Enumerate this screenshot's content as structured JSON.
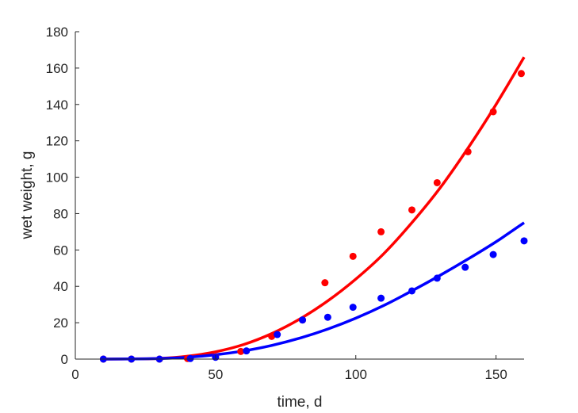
{
  "chart_data": {
    "type": "scatter",
    "xlabel": "time, d",
    "ylabel": "wet weight, g",
    "xlim": [
      0,
      160
    ],
    "ylim": [
      0,
      180
    ],
    "xticks": [
      0,
      50,
      100,
      150
    ],
    "yticks": [
      0,
      20,
      40,
      60,
      80,
      100,
      120,
      140,
      160,
      180
    ],
    "grid": false,
    "series": [
      {
        "color": "#ff0000",
        "points": [
          [
            10,
            0
          ],
          [
            20,
            0
          ],
          [
            30,
            0
          ],
          [
            40,
            0.3
          ],
          [
            50,
            1.2
          ],
          [
            59,
            4.2
          ],
          [
            70,
            12.5
          ],
          [
            81,
            21.5
          ],
          [
            89,
            42
          ],
          [
            99,
            56.5
          ],
          [
            109,
            70
          ],
          [
            120,
            82
          ],
          [
            129,
            97
          ],
          [
            140,
            114
          ],
          [
            149,
            136
          ],
          [
            159,
            157
          ]
        ],
        "fit": [
          [
            10,
            0
          ],
          [
            20,
            0.1
          ],
          [
            30,
            0.4
          ],
          [
            40,
            1.6
          ],
          [
            50,
            4
          ],
          [
            60,
            8
          ],
          [
            70,
            14
          ],
          [
            80,
            22
          ],
          [
            90,
            32
          ],
          [
            100,
            44
          ],
          [
            110,
            58
          ],
          [
            120,
            75
          ],
          [
            130,
            94
          ],
          [
            140,
            116
          ],
          [
            150,
            140
          ],
          [
            160,
            166
          ]
        ]
      },
      {
        "color": "#0000ff",
        "points": [
          [
            10,
            0
          ],
          [
            20,
            0
          ],
          [
            30,
            0
          ],
          [
            41,
            0.3
          ],
          [
            50,
            1
          ],
          [
            61,
            4.5
          ],
          [
            72,
            13.5
          ],
          [
            81,
            21.5
          ],
          [
            90,
            23
          ],
          [
            99,
            28.5
          ],
          [
            109,
            33.5
          ],
          [
            120,
            37.5
          ],
          [
            129,
            44.5
          ],
          [
            139,
            50.5
          ],
          [
            149,
            57.5
          ],
          [
            160,
            65
          ]
        ],
        "fit": [
          [
            10,
            0
          ],
          [
            20,
            0.1
          ],
          [
            30,
            0.3
          ],
          [
            40,
            1
          ],
          [
            50,
            2.4
          ],
          [
            60,
            4.5
          ],
          [
            70,
            7.5
          ],
          [
            80,
            11.5
          ],
          [
            90,
            16.5
          ],
          [
            100,
            22.5
          ],
          [
            110,
            29.5
          ],
          [
            120,
            37.5
          ],
          [
            130,
            46
          ],
          [
            140,
            55
          ],
          [
            150,
            64.5
          ],
          [
            160,
            75
          ]
        ]
      }
    ]
  }
}
